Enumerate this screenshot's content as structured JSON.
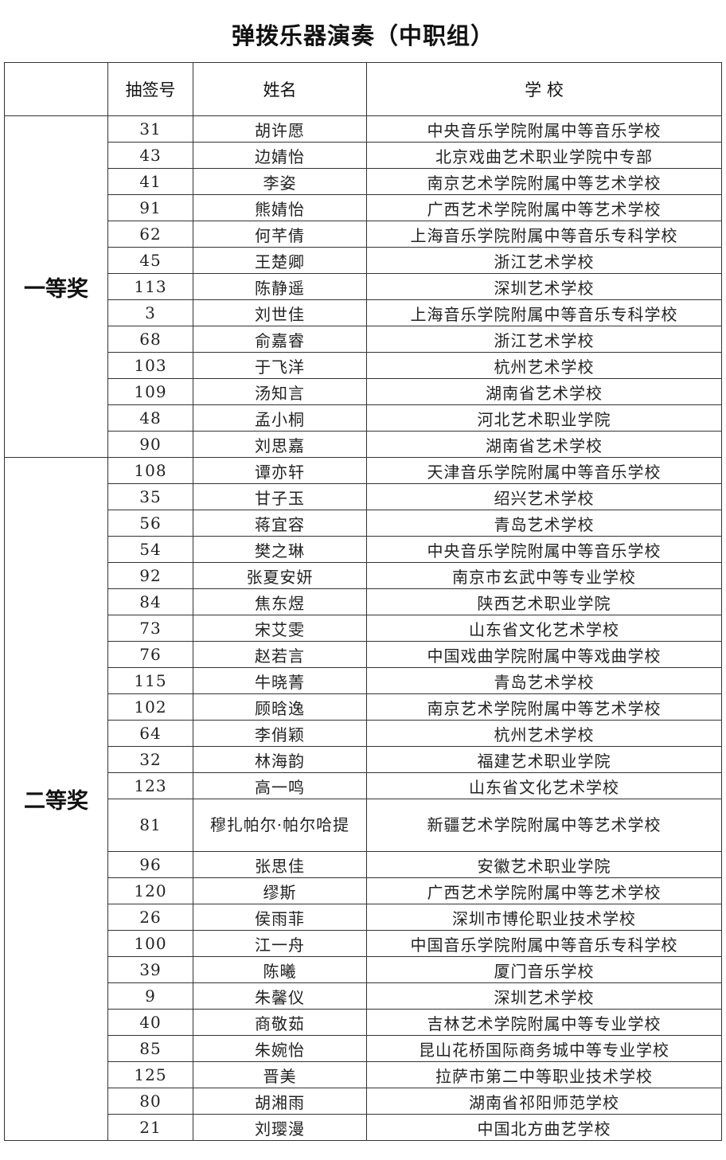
{
  "title": "弹拨乐器演奏（中职组）",
  "headers": {
    "award": "",
    "number": "抽签号",
    "name": "姓名",
    "school": "学 校"
  },
  "groups": [
    {
      "award": "一等奖",
      "rows": [
        {
          "number": "31",
          "name": "胡许愿",
          "school": "中央音乐学院附属中等音乐学校"
        },
        {
          "number": "43",
          "name": "边婧怡",
          "school": "北京戏曲艺术职业学院中专部"
        },
        {
          "number": "41",
          "name": "李姿",
          "school": "南京艺术学院附属中等艺术学校"
        },
        {
          "number": "91",
          "name": "熊婧怡",
          "school": "广西艺术学院附属中等艺术学校"
        },
        {
          "number": "62",
          "name": "何芊倩",
          "school": "上海音乐学院附属中等音乐专科学校"
        },
        {
          "number": "45",
          "name": "王楚卿",
          "school": "浙江艺术学校"
        },
        {
          "number": "113",
          "name": "陈静遥",
          "school": "深圳艺术学校"
        },
        {
          "number": "3",
          "name": "刘世佳",
          "school": "上海音乐学院附属中等音乐专科学校"
        },
        {
          "number": "68",
          "name": "俞嘉睿",
          "school": "浙江艺术学校"
        },
        {
          "number": "103",
          "name": "于飞洋",
          "school": "杭州艺术学校"
        },
        {
          "number": "109",
          "name": "汤知言",
          "school": "湖南省艺术学校"
        },
        {
          "number": "48",
          "name": "孟小桐",
          "school": "河北艺术职业学院"
        },
        {
          "number": "90",
          "name": "刘思嘉",
          "school": "湖南省艺术学校"
        }
      ]
    },
    {
      "award": "二等奖",
      "rows": [
        {
          "number": "108",
          "name": "谭亦轩",
          "school": "天津音乐学院附属中等音乐学校"
        },
        {
          "number": "35",
          "name": "甘子玉",
          "school": "绍兴艺术学校"
        },
        {
          "number": "56",
          "name": "蒋宜容",
          "school": "青岛艺术学校"
        },
        {
          "number": "54",
          "name": "樊之琳",
          "school": "中央音乐学院附属中等音乐学校"
        },
        {
          "number": "92",
          "name": "张夏安妍",
          "school": "南京市玄武中等专业学校"
        },
        {
          "number": "84",
          "name": "焦东煜",
          "school": "陕西艺术职业学院"
        },
        {
          "number": "73",
          "name": "宋艾雯",
          "school": "山东省文化艺术学校"
        },
        {
          "number": "76",
          "name": "赵若言",
          "school": "中国戏曲学院附属中等戏曲学校"
        },
        {
          "number": "115",
          "name": "牛晓菁",
          "school": "青岛艺术学校"
        },
        {
          "number": "102",
          "name": "顾晗逸",
          "school": "南京艺术学院附属中等艺术学校"
        },
        {
          "number": "64",
          "name": "李俏颖",
          "school": "杭州艺术学校"
        },
        {
          "number": "32",
          "name": "林海韵",
          "school": "福建艺术职业学院"
        },
        {
          "number": "123",
          "name": "高一鸣",
          "school": "山东省文化艺术学校"
        },
        {
          "number": "81",
          "name": "穆扎帕尔·帕尔哈提",
          "school": "新疆艺术学院附属中等艺术学校"
        },
        {
          "number": "96",
          "name": "张思佳",
          "school": "安徽艺术职业学院"
        },
        {
          "number": "120",
          "name": "缪斯",
          "school": "广西艺术学院附属中等艺术学校"
        },
        {
          "number": "26",
          "name": "侯雨菲",
          "school": "深圳市博伦职业技术学校"
        },
        {
          "number": "100",
          "name": "江一舟",
          "school": "中国音乐学院附属中等音乐专科学校"
        },
        {
          "number": "39",
          "name": "陈曦",
          "school": "厦门音乐学校"
        },
        {
          "number": "9",
          "name": "朱馨仪",
          "school": "深圳艺术学校"
        },
        {
          "number": "40",
          "name": "商敬茹",
          "school": "吉林艺术学院附属中等专业学校"
        },
        {
          "number": "85",
          "name": "朱婉怡",
          "school": "昆山花桥国际商务城中等专业学校"
        },
        {
          "number": "125",
          "name": "晋美",
          "school": "拉萨市第二中等职业技术学校"
        },
        {
          "number": "80",
          "name": "胡湘雨",
          "school": "湖南省祁阳师范学校"
        },
        {
          "number": "21",
          "name": "刘璎漫",
          "school": "中国北方曲艺学校"
        }
      ]
    }
  ]
}
